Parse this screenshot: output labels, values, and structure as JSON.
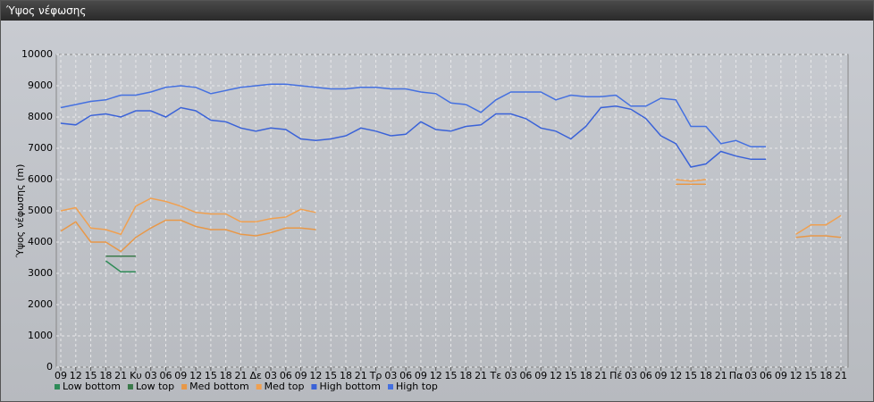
{
  "window_title": "Ύψος νέφωσης",
  "chart_data": {
    "type": "line",
    "ylabel": "Ύψος νέφωσης (m)",
    "categories": [
      "09",
      "12",
      "15",
      "18",
      "21",
      "Κυ",
      "03",
      "06",
      "09",
      "12",
      "15",
      "18",
      "21",
      "Δε",
      "03",
      "06",
      "09",
      "12",
      "15",
      "18",
      "21",
      "Τρ",
      "03",
      "06",
      "09",
      "12",
      "15",
      "18",
      "21",
      "Τε",
      "03",
      "06",
      "09",
      "12",
      "15",
      "18",
      "21",
      "Πέ",
      "03",
      "06",
      "09",
      "12",
      "15",
      "18",
      "21",
      "Πα",
      "03",
      "06",
      "09",
      "12",
      "15",
      "18",
      "21"
    ],
    "ylim": [
      0,
      10000
    ],
    "yticks": [
      0,
      1000,
      2000,
      3000,
      4000,
      5000,
      6000,
      7000,
      8000,
      9000,
      10000
    ],
    "grid": true,
    "legend": "bottom-left",
    "series": [
      {
        "name": "Low bottom",
        "color": "#2e8b57",
        "values": [
          null,
          null,
          null,
          3400,
          3050,
          3050,
          null,
          null,
          null,
          null,
          null,
          null,
          null,
          null,
          null,
          null,
          null,
          null,
          null,
          null,
          null,
          null,
          null,
          null,
          null,
          null,
          null,
          null,
          null,
          null,
          null,
          null,
          null,
          null,
          null,
          null,
          null,
          null,
          null,
          null,
          null,
          null,
          null,
          null,
          null,
          null,
          null,
          null,
          null,
          null,
          null,
          null,
          null
        ]
      },
      {
        "name": "Low top",
        "color": "#3a7a4a",
        "values": [
          null,
          null,
          null,
          3550,
          3550,
          3550,
          null,
          null,
          null,
          null,
          null,
          null,
          null,
          null,
          null,
          null,
          null,
          null,
          null,
          null,
          null,
          null,
          null,
          null,
          null,
          null,
          null,
          null,
          null,
          null,
          null,
          null,
          null,
          null,
          null,
          null,
          null,
          null,
          null,
          null,
          null,
          null,
          null,
          null,
          null,
          null,
          null,
          null,
          null,
          null,
          null,
          null,
          null
        ]
      },
      {
        "name": "Med bottom",
        "color": "#e89848",
        "values": [
          4350,
          4650,
          4000,
          4000,
          3700,
          4150,
          4450,
          4700,
          4700,
          4500,
          4400,
          4400,
          4250,
          4200,
          4300,
          4450,
          4450,
          4400,
          null,
          null,
          null,
          null,
          null,
          null,
          null,
          null,
          null,
          null,
          null,
          null,
          null,
          null,
          null,
          null,
          null,
          null,
          null,
          null,
          null,
          null,
          null,
          5850,
          5850,
          5850,
          null,
          null,
          null,
          null,
          null,
          4150,
          4200,
          4200,
          4150
        ]
      },
      {
        "name": "Med top",
        "color": "#f0a050",
        "values": [
          5000,
          5100,
          4450,
          4400,
          4250,
          5150,
          5400,
          5300,
          5150,
          4950,
          4900,
          4900,
          4650,
          4650,
          4750,
          4800,
          5050,
          4950,
          null,
          null,
          null,
          null,
          null,
          null,
          null,
          null,
          null,
          null,
          null,
          null,
          null,
          null,
          null,
          null,
          null,
          null,
          null,
          null,
          null,
          null,
          null,
          6000,
          5950,
          6000,
          null,
          null,
          null,
          null,
          null,
          4250,
          4550,
          4550,
          4850
        ]
      },
      {
        "name": "High bottom",
        "color": "#3a62d8",
        "values": [
          7800,
          7750,
          8050,
          8100,
          8000,
          8200,
          8200,
          8000,
          8300,
          8200,
          7900,
          7850,
          7650,
          7550,
          7650,
          7600,
          7300,
          7250,
          7300,
          7400,
          7650,
          7550,
          7400,
          7450,
          7850,
          7600,
          7550,
          7700,
          7750,
          8100,
          8100,
          7950,
          7650,
          7550,
          7300,
          7700,
          8300,
          8350,
          8250,
          7950,
          7400,
          7150,
          6400,
          6500,
          6900,
          6750,
          6650,
          6650,
          null,
          null,
          null,
          null,
          null
        ]
      },
      {
        "name": "High top",
        "color": "#4470e0",
        "values": [
          8300,
          8400,
          8500,
          8550,
          8700,
          8700,
          8800,
          8950,
          9000,
          8950,
          8750,
          8850,
          8950,
          9000,
          9050,
          9050,
          9000,
          8950,
          8900,
          8900,
          8950,
          8950,
          8900,
          8900,
          8800,
          8750,
          8450,
          8400,
          8150,
          8550,
          8800,
          8800,
          8800,
          8550,
          8700,
          8650,
          8650,
          8700,
          8350,
          8350,
          8600,
          8550,
          7700,
          7700,
          7150,
          7250,
          7050,
          7050,
          null,
          null,
          null,
          null,
          null
        ]
      }
    ]
  }
}
